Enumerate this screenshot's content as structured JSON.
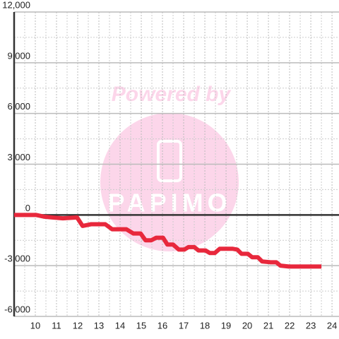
{
  "chart_data": {
    "type": "line",
    "watermark": [
      "Powered by",
      "PAPIMO"
    ],
    "x": [
      9,
      10.03,
      10.4,
      10.8,
      11.3,
      11.97,
      12.23,
      12.63,
      13.3,
      13.63,
      14.3,
      14.63,
      14.97,
      15.2,
      15.47,
      15.7,
      16.03,
      16.23,
      16.5,
      16.77,
      17.03,
      17.23,
      17.5,
      17.7,
      18.03,
      18.23,
      18.47,
      18.7,
      19.3,
      19.53,
      19.73,
      20.03,
      20.23,
      20.5,
      20.7,
      21.1,
      21.37,
      21.57,
      21.97,
      23.5
    ],
    "series": [
      {
        "color": "#e8283c",
        "values": [
          0,
          0,
          -100,
          -150,
          -200,
          -150,
          -650,
          -550,
          -550,
          -850,
          -850,
          -1100,
          -1100,
          -1500,
          -1500,
          -1350,
          -1350,
          -1750,
          -1750,
          -2050,
          -2050,
          -1900,
          -1900,
          -2100,
          -2100,
          -2250,
          -2250,
          -2000,
          -2000,
          -2050,
          -2300,
          -2300,
          -2500,
          -2500,
          -2750,
          -2800,
          -2800,
          -3000,
          -3050,
          -3050
        ]
      }
    ],
    "xlim": [
      9,
      24.33
    ],
    "xticks": [
      10,
      11,
      12,
      13,
      14,
      15,
      16,
      17,
      18,
      19,
      20,
      21,
      22,
      23,
      24
    ],
    "ylim": [
      -6000,
      12000
    ],
    "yticks": [
      {
        "value": -6000,
        "label": "-6,000"
      },
      {
        "value": -3000,
        "label": "-3,000"
      },
      0,
      {
        "value": 3000,
        "label": "3,000"
      },
      {
        "value": 6000,
        "label": "6,000"
      },
      {
        "value": 9000,
        "label": "9,000"
      },
      {
        "value": 12000,
        "label": "12,000"
      }
    ],
    "grid": true
  }
}
